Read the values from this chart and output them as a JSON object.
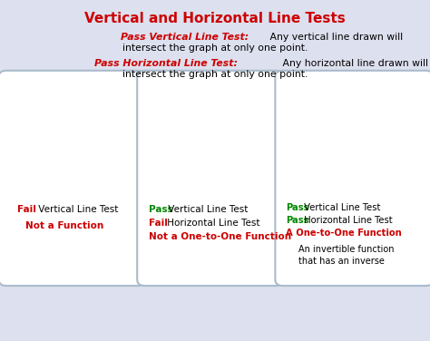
{
  "title": "Vertical and Horizontal Line Tests",
  "title_color": "#cc0000",
  "bg_color": "#dde0ee",
  "outer_border_color": "#9999bb",
  "panel_bg_yellow": "#fffacd",
  "panel_bg_white": "#ffffff",
  "panel_border_color": "#aabbcc",
  "green_color": "#006600",
  "blue_color": "#2222cc",
  "orange_color": "#cc8800",
  "red_color": "#cc0000",
  "pass_color": "#cc0000",
  "fail_color": "#cc0000",
  "pass_word_color": "#008800",
  "fail_word_color": "#cc0000",
  "gray_axis": "#888888",
  "text_line1_red": "Pass Vertical Line Test:",
  "text_line1_black": " Any vertical line drawn will",
  "text_line1b": "intersect the graph at only one point.",
  "text_line2_red": "Pass Horizontal Line Test:",
  "text_line2_black": " Any horizontal line drawn will",
  "text_line2b": "intersect the graph at only one point.",
  "p1_l1a": "Fail",
  "p1_l1b": " Vertical Line Test",
  "p1_l2": "Not a Function",
  "p2_l1a": "Pass",
  "p2_l1b": " Vertical Line Test",
  "p2_l2a": "Fail",
  "p2_l2b": " Horizontal Line Test",
  "p2_l3": "Not a One-to-One Function",
  "p3_l1a": "Pass",
  "p3_l1b": " Vertical Line Test",
  "p3_l2a": "Pass",
  "p3_l2b": " Horizontal Line Test",
  "p3_l3": "A One-to-One Function",
  "p3_l4a": "An invertible function",
  "p3_l4b": "that has an inverse"
}
